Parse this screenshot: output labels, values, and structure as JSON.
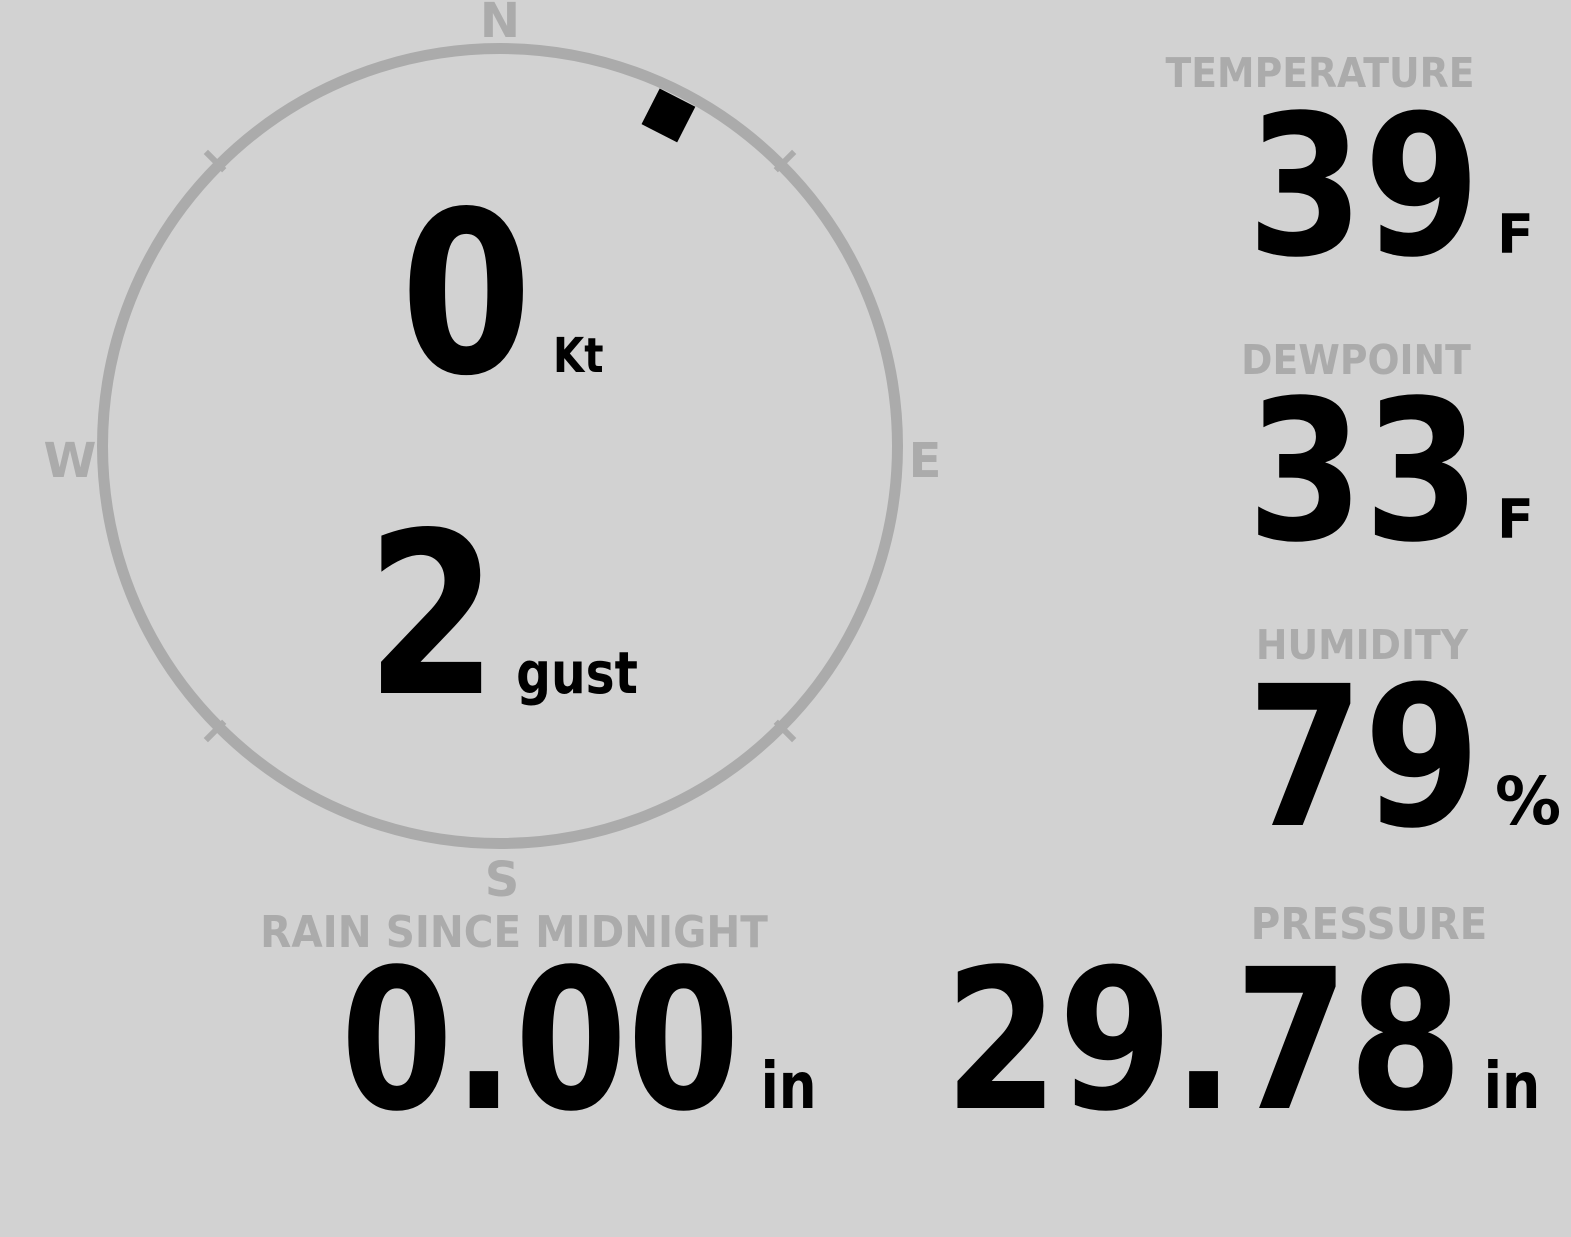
{
  "theme": {
    "background_color": "#d2d2d2",
    "muted_color": "#ababab",
    "text_color": "#000000"
  },
  "compass": {
    "cardinals": {
      "north": "N",
      "east": "E",
      "south": "S",
      "west": "W"
    },
    "wind_direction_deg": 27,
    "speed": {
      "value": "0",
      "unit": "Kt"
    },
    "gust": {
      "value": "2",
      "unit": "gust"
    }
  },
  "panels": {
    "temperature": {
      "label": "TEMPERATURE",
      "value": "39",
      "unit": "F"
    },
    "dewpoint": {
      "label": "DEWPOINT",
      "value": "33",
      "unit": "F"
    },
    "humidity": {
      "label": "HUMIDITY",
      "value": "79",
      "unit": "%"
    },
    "rain": {
      "label": "RAIN SINCE MIDNIGHT",
      "value": "0.00",
      "unit": "in"
    },
    "pressure": {
      "label": "PRESSURE",
      "value": "29.78",
      "unit": "in"
    }
  }
}
